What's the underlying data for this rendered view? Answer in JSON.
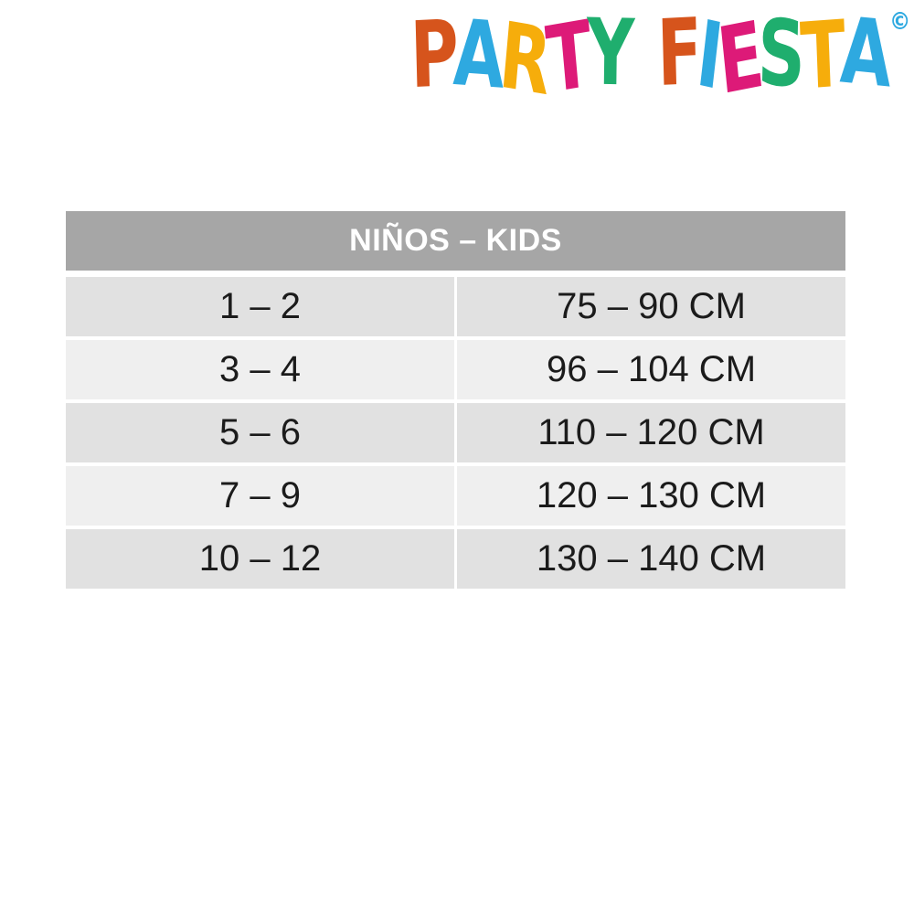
{
  "logo": {
    "brand": "PARTY FIESTA",
    "copyright": "©",
    "copyright_color": "#2ea9e0",
    "letters": [
      {
        "ch": "P",
        "color": "#d6541c"
      },
      {
        "ch": "A",
        "color": "#2ea9e0"
      },
      {
        "ch": "R",
        "color": "#f6ad0b"
      },
      {
        "ch": "T",
        "color": "#dd1a78"
      },
      {
        "ch": "Y",
        "color": "#1fae6e"
      },
      {
        "ch": " "
      },
      {
        "ch": "F",
        "color": "#d6541c"
      },
      {
        "ch": "I",
        "color": "#2ea9e0"
      },
      {
        "ch": "E",
        "color": "#dd1a78"
      },
      {
        "ch": "S",
        "color": "#1fae6e"
      },
      {
        "ch": "T",
        "color": "#f6ad0b"
      },
      {
        "ch": "A",
        "color": "#2ea9e0"
      }
    ]
  },
  "table": {
    "header": "NIÑOS – KIDS",
    "rows": [
      {
        "age": "1 – 2",
        "height": "75 – 90 CM"
      },
      {
        "age": "3 – 4",
        "height": "96 – 104 CM"
      },
      {
        "age": "5 – 6",
        "height": "110 – 120 CM"
      },
      {
        "age": "7 – 9",
        "height": "120 – 130 CM"
      },
      {
        "age": "10 – 12",
        "height": "130 – 140 CM"
      }
    ],
    "colors": {
      "header_bg": "#a6a6a6",
      "header_text": "#ffffff",
      "row_odd": "#e1e1e1",
      "row_even": "#efefef",
      "cell_text": "#1b1b1b"
    }
  },
  "chart_data": {
    "type": "table",
    "title": "NIÑOS – KIDS",
    "rows": [
      [
        "1 – 2",
        "75 – 90 CM"
      ],
      [
        "3 – 4",
        "96 – 104 CM"
      ],
      [
        "5 – 6",
        "110 – 120 CM"
      ],
      [
        "7 – 9",
        "120 – 130 CM"
      ],
      [
        "10 – 12",
        "130 – 140 CM"
      ]
    ]
  }
}
